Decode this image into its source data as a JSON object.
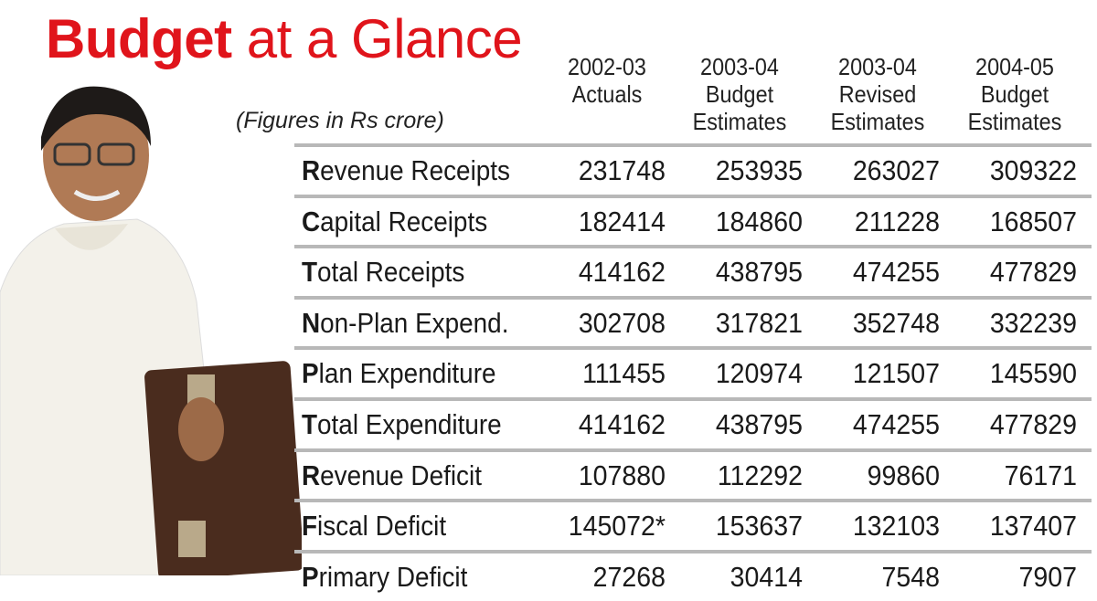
{
  "title": {
    "bold": "Budget",
    "rest": " at a Glance"
  },
  "note": "(Figures in Rs crore)",
  "colors": {
    "title": "#e0141b",
    "rule": "#b8b8b8"
  },
  "chart_data": {
    "type": "table",
    "title": "Budget at a Glance",
    "subtitle": "(Figures in Rs crore)",
    "columns": [
      [
        "",
        "2002-03",
        "Actuals"
      ],
      [
        "2003-04",
        "Budget",
        "Estimates"
      ],
      [
        "2003-04",
        "Revised",
        "Estimates"
      ],
      [
        "2004-05",
        "Budget",
        "Estimates"
      ]
    ],
    "rows": [
      {
        "label": "Revenue Receipts",
        "values": [
          "231748",
          "253935",
          "263027",
          "309322"
        ]
      },
      {
        "label": "Capital Receipts",
        "values": [
          "182414",
          "184860",
          "211228",
          "168507"
        ]
      },
      {
        "label": "Total Receipts",
        "values": [
          "414162",
          "438795",
          "474255",
          "477829"
        ]
      },
      {
        "label": "Non-Plan Expend.",
        "values": [
          "302708",
          "317821",
          "352748",
          "332239"
        ]
      },
      {
        "label": "Plan Expenditure",
        "values": [
          "111455",
          "120974",
          "121507",
          "145590"
        ]
      },
      {
        "label": "Total Expenditure",
        "values": [
          "414162",
          "438795",
          "474255",
          "477829"
        ]
      },
      {
        "label": "Revenue Deficit",
        "values": [
          "107880",
          "112292",
          "99860",
          "76171"
        ]
      },
      {
        "label": "Fiscal Deficit",
        "values": [
          "145072*",
          "153637",
          "132103",
          "137407"
        ]
      },
      {
        "label": "Primary Deficit",
        "values": [
          "27268",
          "30414",
          "7548",
          "7907"
        ]
      }
    ]
  }
}
